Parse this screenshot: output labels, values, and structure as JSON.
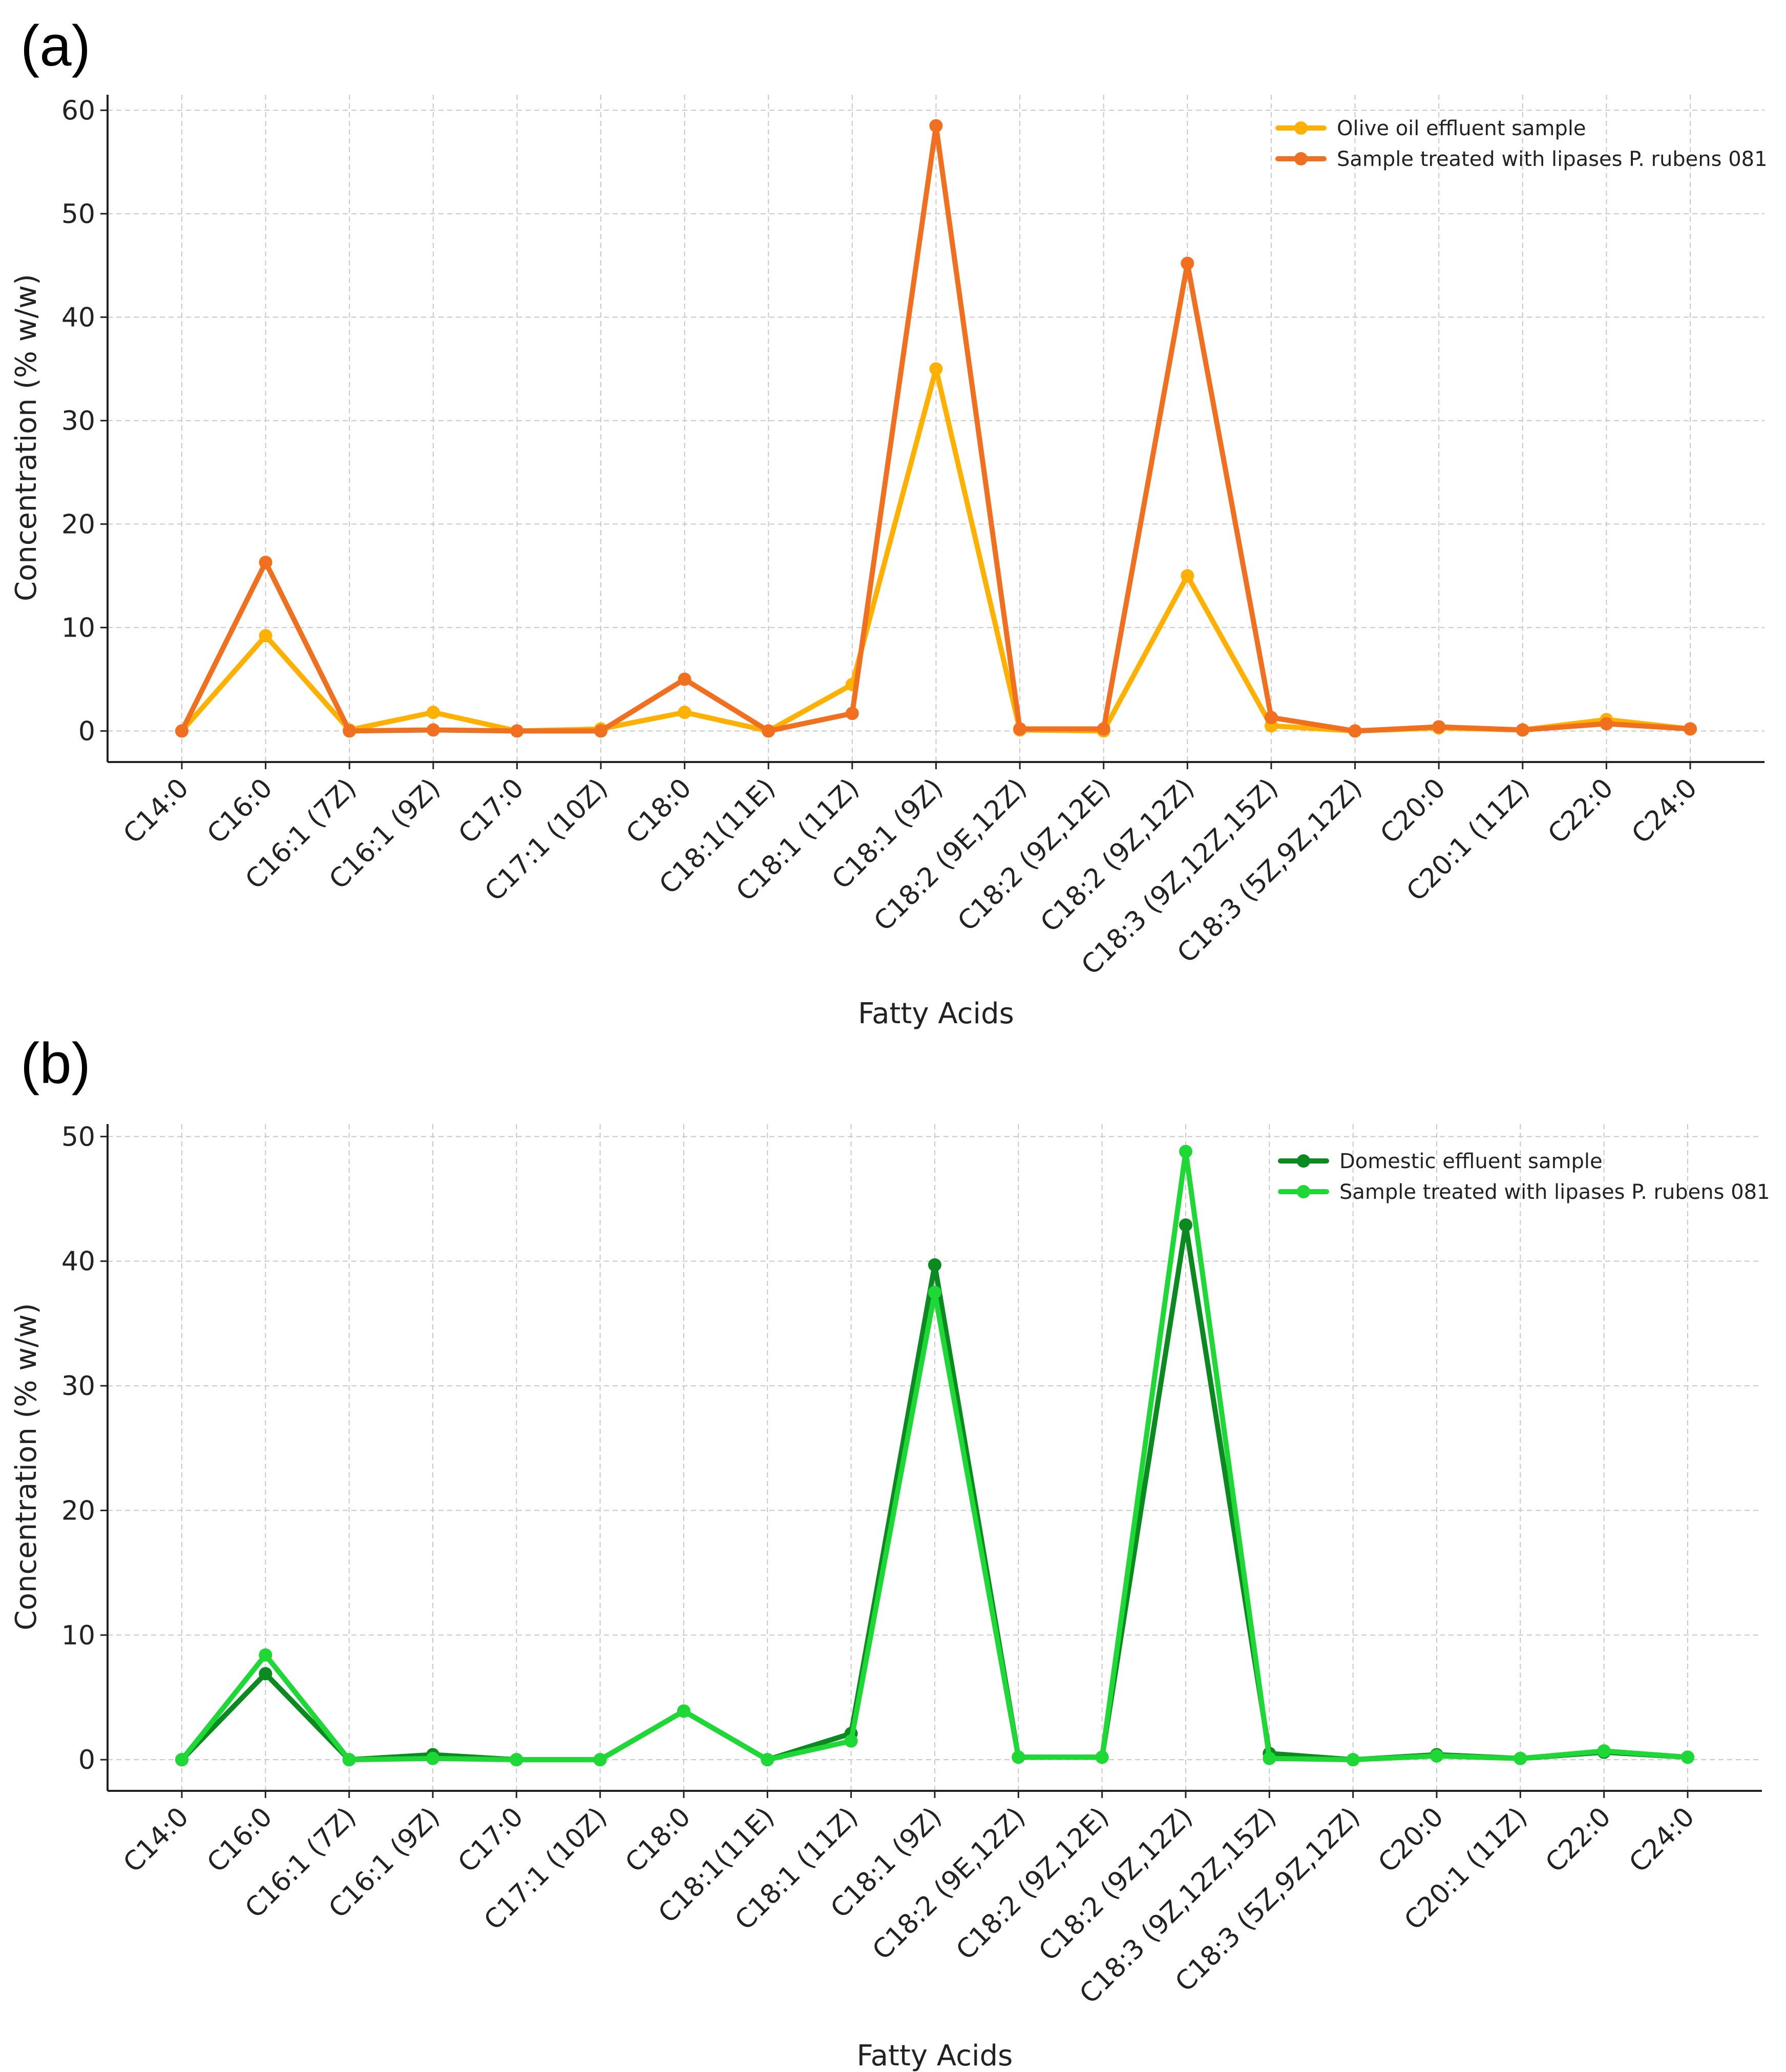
{
  "chart_data": [
    {
      "panel_label": "(a)",
      "type": "line",
      "title": "",
      "xlabel": "Fatty Acids",
      "ylabel": "Concentration (% w/w)",
      "ylim": [
        -3,
        61.5
      ],
      "yticks": [
        0,
        10,
        20,
        30,
        40,
        50,
        60
      ],
      "grid": true,
      "legend_position": "top-right",
      "categories": [
        "C14:0",
        "C16:0",
        "C16:1 (7Z)",
        "C16:1 (9Z)",
        "C17:0",
        "C17:1 (10Z)",
        "C18:0",
        "C18:1(11E)",
        "C18:1 (11Z)",
        "C18:1 (9Z)",
        "C18:2 (9E,12Z)",
        "C18:2 (9Z,12E)",
        "C18:2 (9Z,12Z)",
        "C18:3 (9Z,12Z,15Z)",
        "C18:3 (5Z,9Z,12Z)",
        "C20:0",
        "C20:1 (11Z)",
        "C22:0",
        "C24:0"
      ],
      "series": [
        {
          "name": "Olive oil effluent sample",
          "color": "#ffb000",
          "values": [
            0.0,
            9.2,
            0.1,
            1.8,
            0.0,
            0.2,
            1.8,
            0.0,
            4.5,
            35.0,
            0.1,
            0.0,
            15.0,
            0.5,
            0.0,
            0.3,
            0.1,
            1.1,
            0.2
          ]
        },
        {
          "name": "Sample treated with lipases P. rubens 081",
          "color": "#f07020",
          "values": [
            0.0,
            16.3,
            0.0,
            0.1,
            0.0,
            0.0,
            5.0,
            0.0,
            1.7,
            58.5,
            0.2,
            0.2,
            45.2,
            1.3,
            0.0,
            0.4,
            0.1,
            0.7,
            0.2
          ]
        }
      ]
    },
    {
      "panel_label": "(b)",
      "type": "line",
      "title": "",
      "xlabel": "Fatty Acids",
      "ylabel": "Concentration (% w/w)",
      "ylim": [
        -2.5,
        51
      ],
      "yticks": [
        0,
        10,
        20,
        30,
        40,
        50
      ],
      "grid": true,
      "legend_position": "top-right",
      "categories": [
        "C14:0",
        "C16:0",
        "C16:1 (7Z)",
        "C16:1 (9Z)",
        "C17:0",
        "C17:1 (10Z)",
        "C18:0",
        "C18:1(11E)",
        "C18:1 (11Z)",
        "C18:1 (9Z)",
        "C18:2 (9E,12Z)",
        "C18:2 (9Z,12E)",
        "C18:2 (9Z,12Z)",
        "C18:3 (9Z,12Z,15Z)",
        "C18:3 (5Z,9Z,12Z)",
        "C20:0",
        "C20:1 (11Z)",
        "C22:0",
        "C24:0"
      ],
      "series": [
        {
          "name": "Domestic effluent sample",
          "color": "#0a8a1f",
          "values": [
            0.0,
            6.9,
            0.0,
            0.4,
            0.0,
            0.0,
            3.9,
            0.0,
            2.1,
            39.7,
            0.2,
            0.2,
            42.9,
            0.5,
            0.0,
            0.4,
            0.1,
            0.6,
            0.2
          ]
        },
        {
          "name": "Sample treated with lipases P. rubens 081",
          "color": "#1ed836",
          "values": [
            0.0,
            8.4,
            0.0,
            0.1,
            0.0,
            0.0,
            3.9,
            0.0,
            1.5,
            37.5,
            0.2,
            0.2,
            48.8,
            0.1,
            0.0,
            0.3,
            0.1,
            0.7,
            0.2
          ]
        }
      ]
    }
  ]
}
